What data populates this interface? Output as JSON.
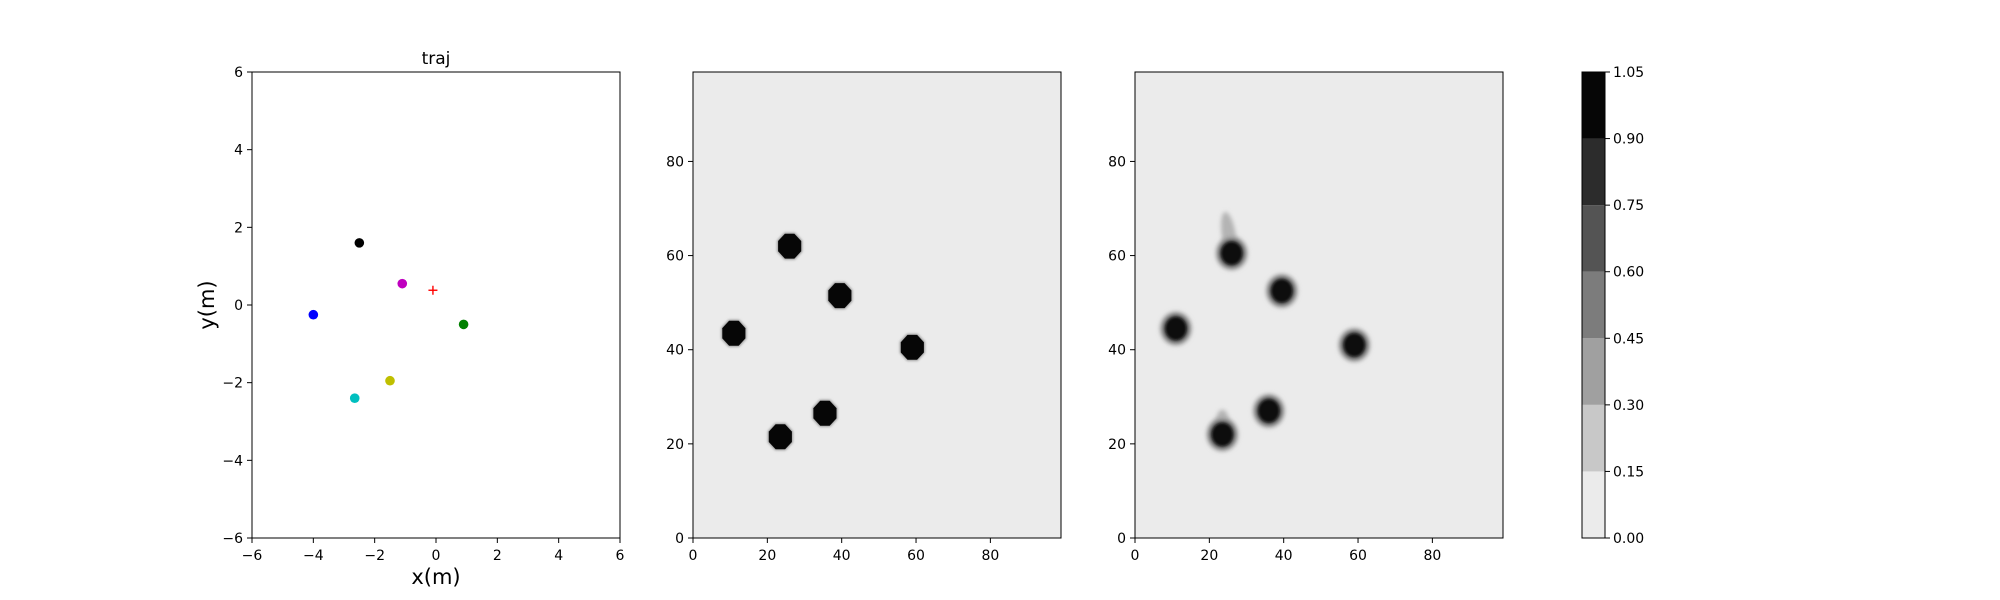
{
  "chart_data": [
    {
      "type": "scatter",
      "title": "traj",
      "xlabel": "x(m)",
      "ylabel": "y(m)",
      "xlim": [
        -6,
        6
      ],
      "ylim": [
        -6,
        6
      ],
      "xticks": [
        -6,
        -4,
        -2,
        0,
        2,
        4,
        6
      ],
      "yticks": [
        -6,
        -4,
        -2,
        0,
        2,
        4,
        6
      ],
      "grid": false,
      "points": [
        {
          "x": -2.5,
          "y": 1.6,
          "color": "#000000",
          "marker": "circle"
        },
        {
          "x": -1.1,
          "y": 0.55,
          "color": "#bf00bf",
          "marker": "circle"
        },
        {
          "x": -4.0,
          "y": -0.25,
          "color": "#0000ff",
          "marker": "circle"
        },
        {
          "x": 0.9,
          "y": -0.5,
          "color": "#008000",
          "marker": "circle"
        },
        {
          "x": -1.5,
          "y": -1.95,
          "color": "#bfbf00",
          "marker": "circle"
        },
        {
          "x": -2.65,
          "y": -2.4,
          "color": "#00bfbf",
          "marker": "circle"
        },
        {
          "x": -0.1,
          "y": 0.38,
          "color": "#ff0000",
          "marker": "plus"
        }
      ]
    },
    {
      "type": "heatmap",
      "title": "",
      "xlim": [
        0,
        99
      ],
      "ylim": [
        0,
        99
      ],
      "xticks": [
        0,
        20,
        40,
        60,
        80
      ],
      "yticks": [
        0,
        20,
        40,
        60,
        80
      ],
      "background_value": 0.05,
      "blobs": [
        {
          "x": 26,
          "y": 62,
          "shape": "octagon"
        },
        {
          "x": 39.5,
          "y": 51.5,
          "shape": "octagon"
        },
        {
          "x": 11,
          "y": 43.5,
          "shape": "octagon"
        },
        {
          "x": 59,
          "y": 40.5,
          "shape": "octagon"
        },
        {
          "x": 35.5,
          "y": 26.5,
          "shape": "octagon"
        },
        {
          "x": 23.5,
          "y": 21.5,
          "shape": "octagon"
        }
      ]
    },
    {
      "type": "heatmap",
      "title": "",
      "xlim": [
        0,
        99
      ],
      "ylim": [
        0,
        99
      ],
      "xticks": [
        0,
        20,
        40,
        60,
        80
      ],
      "yticks": [
        0,
        20,
        40,
        60,
        80
      ],
      "background_value": 0.05,
      "blobs": [
        {
          "x": 26,
          "y": 60.5,
          "shape": "ellipse",
          "tail_to": [
            24.5,
            68
          ]
        },
        {
          "x": 39.5,
          "y": 52.5,
          "shape": "ellipse"
        },
        {
          "x": 11,
          "y": 44.5,
          "shape": "ellipse"
        },
        {
          "x": 59,
          "y": 41,
          "shape": "ellipse"
        },
        {
          "x": 36,
          "y": 27,
          "shape": "ellipse"
        },
        {
          "x": 23.5,
          "y": 22,
          "shape": "ellipse",
          "tail_to": [
            23.5,
            26
          ]
        }
      ]
    }
  ],
  "colorbar": {
    "levels": [
      0.0,
      0.15,
      0.3,
      0.45,
      0.6,
      0.75,
      0.9,
      1.05
    ],
    "labels": [
      "0.00",
      "0.15",
      "0.30",
      "0.45",
      "0.60",
      "0.75",
      "0.90",
      "1.05"
    ],
    "colors": [
      "#ebebeb",
      "#c8c8c8",
      "#a0a0a0",
      "#7c7c7c",
      "#545454",
      "#2c2c2c",
      "#060606"
    ]
  }
}
